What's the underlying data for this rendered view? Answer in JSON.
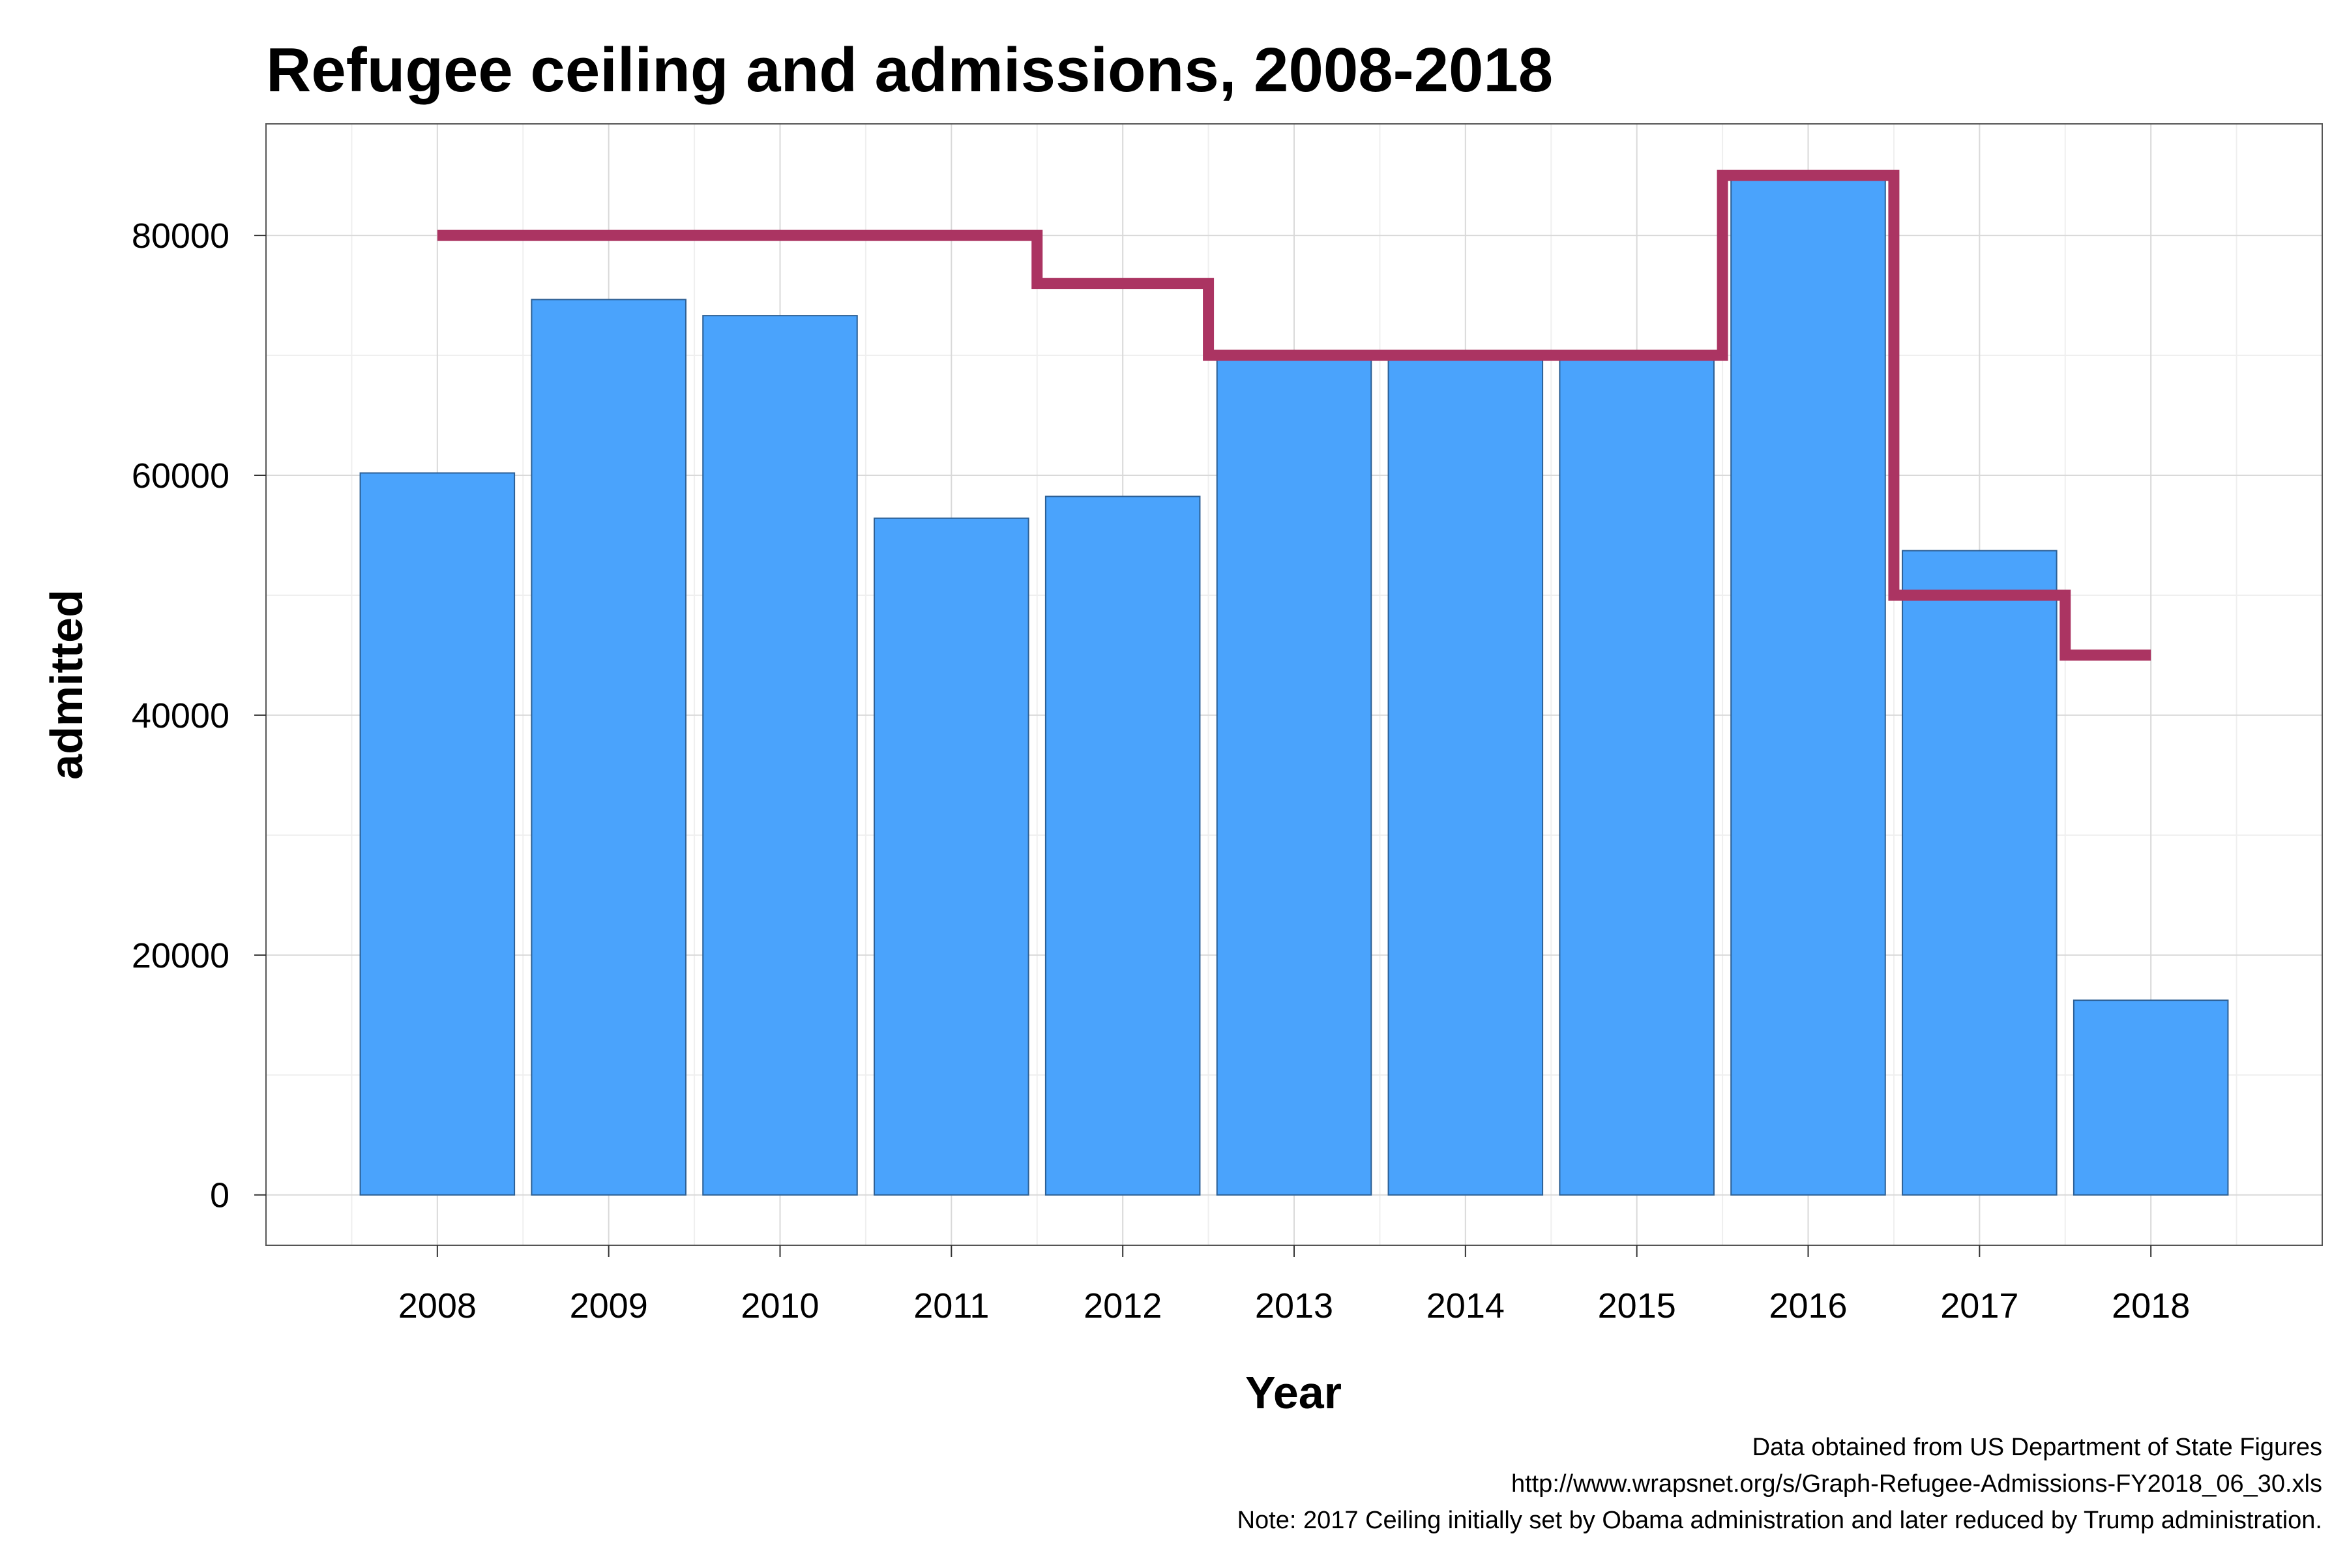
{
  "title": "Refugee ceiling and admissions, 2008-2018",
  "chart_data": {
    "type": "bar",
    "title": "Refugee ceiling and admissions, 2008-2018",
    "xlabel": "Year",
    "ylabel": "admitted",
    "categories": [
      "2008",
      "2009",
      "2010",
      "2011",
      "2012",
      "2013",
      "2014",
      "2015",
      "2016",
      "2017",
      "2018"
    ],
    "series": [
      {
        "type": "bar",
        "values": [
          60192,
          74654,
          73311,
          56424,
          58238,
          69926,
          69987,
          69933,
          84995,
          53716,
          16230
        ],
        "color": "#4aa3fc"
      },
      {
        "type": "step-line",
        "values": [
          80000,
          80000,
          80000,
          80000,
          76000,
          70000,
          70000,
          70000,
          85000,
          50000,
          45000
        ],
        "color": "#ab3462"
      }
    ],
    "ylim": [
      -4200,
      89300
    ],
    "yticks": [
      "0",
      "20000",
      "40000",
      "60000",
      "80000"
    ],
    "grid": true,
    "legend": "none"
  },
  "caption": [
    "Data obtained from US Department of State Figures",
    "http://www.wrapsnet.org/s/Graph-Refugee-Admissions-FY2018_06_30.xls",
    "Note: 2017 Ceiling initially set by Obama administration and later reduced by Trump administration."
  ],
  "colors": {
    "bar_fill": "#4aa3fc",
    "bar_stroke": "#2c5f94",
    "ceiling_line": "#ab3462",
    "grid": "#d9d9d9",
    "grid_minor": "#efefef",
    "panel_border": "#555555"
  }
}
